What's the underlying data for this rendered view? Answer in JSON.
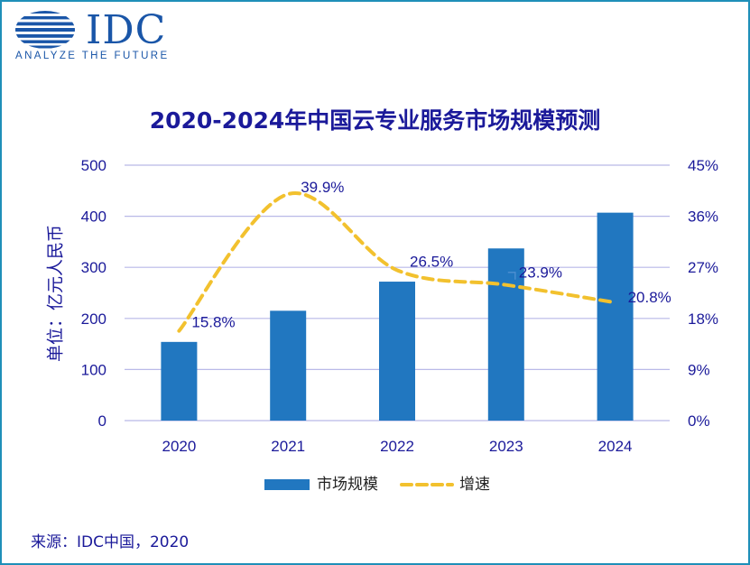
{
  "logo": {
    "wordmark": "IDC",
    "tagline": "ANALYZE THE FUTURE",
    "icon": "striped-globe-icon"
  },
  "colors": {
    "border": "#1f8fb8",
    "bar": "#2177c0",
    "line": "#f2c12e",
    "text": "#1b1a9a",
    "grid": "#b9b9e8"
  },
  "source": "来源：IDC中国，2020",
  "chart_data": {
    "type": "bar",
    "title": "2020-2024年中国云专业服务市场规模预测",
    "ylabel": "单位：亿元人民币",
    "y2label": "",
    "categories": [
      "2020",
      "2021",
      "2022",
      "2023",
      "2024"
    ],
    "ylim": [
      0,
      500
    ],
    "yticks": [
      "0",
      "100",
      "200",
      "300",
      "400",
      "500"
    ],
    "y2lim": [
      0,
      45
    ],
    "y2ticks": [
      "0%",
      "9%",
      "18%",
      "27%",
      "36%",
      "45%"
    ],
    "grid": true,
    "legend_position": "bottom",
    "series": [
      {
        "name": "市场规模",
        "type": "bar",
        "axis": "left",
        "values": [
          154,
          215,
          272,
          337,
          407
        ]
      },
      {
        "name": "增速",
        "type": "line",
        "style": "dashed-smooth",
        "axis": "right",
        "values": [
          15.8,
          39.9,
          26.5,
          23.9,
          20.8
        ]
      }
    ],
    "data_labels": [
      "15.8%",
      "39.9%",
      "26.5%",
      "23.9%",
      "20.8%"
    ]
  }
}
